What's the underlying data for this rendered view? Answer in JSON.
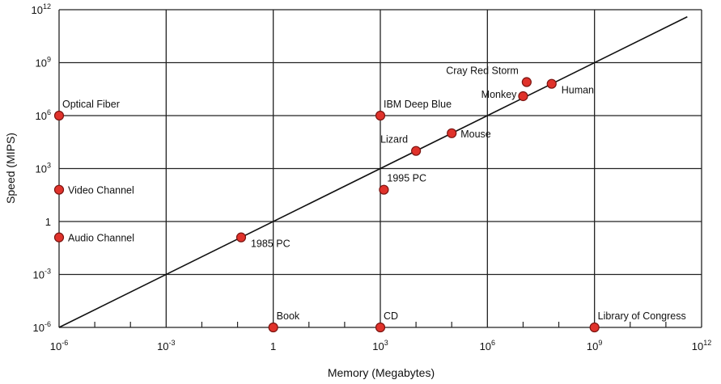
{
  "chart_data": {
    "type": "scatter",
    "title": "",
    "xlabel": "Memory (Megabytes)",
    "ylabel": "Speed (MIPS)",
    "x_scale": "log",
    "y_scale": "log",
    "xlim_exp": [
      -6,
      12
    ],
    "ylim_exp": [
      -6,
      12
    ],
    "x_ticks": [
      {
        "exp": -6,
        "base": "10",
        "sup": "-6"
      },
      {
        "exp": -3,
        "base": "10",
        "sup": "-3"
      },
      {
        "exp": 0,
        "base": "1",
        "sup": ""
      },
      {
        "exp": 3,
        "base": "10",
        "sup": "3"
      },
      {
        "exp": 6,
        "base": "10",
        "sup": "6"
      },
      {
        "exp": 9,
        "base": "10",
        "sup": "9"
      },
      {
        "exp": 12,
        "base": "10",
        "sup": "12"
      }
    ],
    "y_ticks": [
      {
        "exp": -6,
        "base": "10",
        "sup": "-6"
      },
      {
        "exp": -3,
        "base": "10",
        "sup": "-3"
      },
      {
        "exp": 0,
        "base": "1",
        "sup": ""
      },
      {
        "exp": 3,
        "base": "10",
        "sup": "3"
      },
      {
        "exp": 6,
        "base": "10",
        "sup": "6"
      },
      {
        "exp": 9,
        "base": "10",
        "sup": "9"
      },
      {
        "exp": 12,
        "base": "10",
        "sup": "12"
      }
    ],
    "grid": true,
    "trend_line": {
      "x_exp": [
        -6,
        11.6
      ],
      "y_exp": [
        -6,
        11.6
      ]
    },
    "points": [
      {
        "label": "Optical Fiber",
        "x_exp": -6,
        "y_exp": 6,
        "label_pos": "above-right"
      },
      {
        "label": "Video Channel",
        "x_exp": -6,
        "y_exp": 1.8,
        "label_pos": "right"
      },
      {
        "label": "Audio Channel",
        "x_exp": -6,
        "y_exp": -0.9,
        "label_pos": "right"
      },
      {
        "label": "1985 PC",
        "x_exp": -0.9,
        "y_exp": -0.9,
        "label_pos": "below-right"
      },
      {
        "label": "Book",
        "x_exp": 0,
        "y_exp": -6,
        "label_pos": "above-right"
      },
      {
        "label": "CD",
        "x_exp": 3,
        "y_exp": -6,
        "label_pos": "above-right"
      },
      {
        "label": "IBM Deep Blue",
        "x_exp": 3,
        "y_exp": 6,
        "label_pos": "above-right"
      },
      {
        "label": "1995 PC",
        "x_exp": 3.1,
        "y_exp": 1.8,
        "label_pos": "above-right"
      },
      {
        "label": "Lizard",
        "x_exp": 4,
        "y_exp": 4,
        "label_pos": "above-left"
      },
      {
        "label": "Mouse",
        "x_exp": 5,
        "y_exp": 5,
        "label_pos": "right"
      },
      {
        "label": "Monkey",
        "x_exp": 7,
        "y_exp": 7.1,
        "label_pos": "left"
      },
      {
        "label": "Cray Red Storm",
        "x_exp": 7.1,
        "y_exp": 7.9,
        "label_pos": "above-left"
      },
      {
        "label": "Human",
        "x_exp": 7.8,
        "y_exp": 7.8,
        "label_pos": "below-right"
      },
      {
        "label": "Library of Congress",
        "x_exp": 9,
        "y_exp": -6,
        "label_pos": "above-right"
      }
    ],
    "colors": {
      "point_fill": "#e0322b",
      "point_stroke": "#7a1410",
      "grid": "#222222",
      "line": "#111111"
    }
  }
}
